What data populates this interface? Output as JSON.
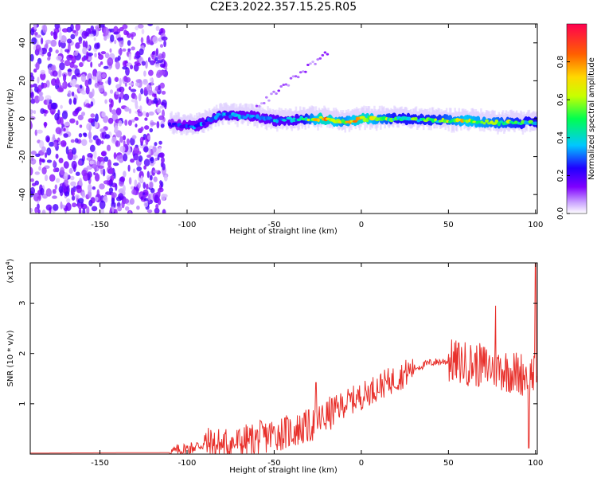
{
  "page_title": "C2E3.2022.357.15.25.R05",
  "chart_data": [
    {
      "type": "heatmap",
      "title": "C2E3.2022.357.15.25.R05",
      "xlabel": "Height of straight line (km)",
      "ylabel": "Frequency (Hz)",
      "xlim": [
        -190,
        101
      ],
      "ylim": [
        -50,
        50
      ],
      "x_ticks": [
        -150,
        -100,
        -50,
        0,
        50,
        100
      ],
      "x_tick_labels": [
        "-150",
        "-100",
        "-50",
        "0",
        "50",
        "100"
      ],
      "y_ticks": [
        -40,
        -20,
        0,
        20,
        40
      ],
      "y_tick_labels": [
        "-40",
        "-20",
        "0",
        "20",
        "40"
      ],
      "colorbar": {
        "label": "Normalized spectral amplitude",
        "range": [
          0,
          1
        ],
        "ticks": [
          0.0,
          0.2,
          0.4,
          0.6,
          0.8
        ],
        "tick_labels": [
          "0.0",
          "0.2",
          "0.4",
          "0.6",
          "0.8"
        ],
        "colors": [
          "#ffffff",
          "#9a00ff",
          "#2000ff",
          "#00c8ff",
          "#00ff40",
          "#ffff00",
          "#ff8000",
          "#ff0040"
        ]
      },
      "description_ridge": [
        {
          "x": -110,
          "y": -3,
          "amp": 0.25
        },
        {
          "x": -95,
          "y": -4,
          "amp": 0.35
        },
        {
          "x": -80,
          "y": 2,
          "amp": 0.4
        },
        {
          "x": -60,
          "y": 1,
          "amp": 0.35
        },
        {
          "x": -50,
          "y": -1,
          "amp": 0.4
        },
        {
          "x": -35,
          "y": 0,
          "amp": 0.45
        },
        {
          "x": -22,
          "y": 0,
          "amp": 0.95
        },
        {
          "x": -10,
          "y": -2,
          "amp": 0.7
        },
        {
          "x": 0,
          "y": 0,
          "amp": 0.9
        },
        {
          "x": 20,
          "y": 0,
          "amp": 0.55
        },
        {
          "x": 45,
          "y": -1,
          "amp": 0.6
        },
        {
          "x": 60,
          "y": -1,
          "amp": 0.8
        },
        {
          "x": 75,
          "y": -2,
          "amp": 0.7
        },
        {
          "x": 95,
          "y": -2,
          "amp": 0.55
        }
      ],
      "noise_region_x": [
        -190,
        -112
      ],
      "noise_amp": 0.18
    },
    {
      "type": "line",
      "xlabel": "Height of straight line (km)",
      "ylabel": "SNR (10 * v/v)",
      "y_multiplier": "(x10",
      "y_multiplier_exp": "4",
      "y_multiplier_close": ")",
      "xlim": [
        -190,
        101
      ],
      "ylim": [
        0,
        3.8
      ],
      "x_ticks": [
        -150,
        -100,
        -50,
        0,
        50,
        100
      ],
      "x_tick_labels": [
        "-150",
        "-100",
        "-50",
        "0",
        "50",
        "100"
      ],
      "y_ticks": [
        1,
        2,
        3
      ],
      "y_tick_labels": [
        "1",
        "2",
        "3"
      ],
      "series": [
        {
          "color": "#e8302b",
          "baseline": [
            [
              -190,
              0.02
            ],
            [
              -110,
              0.03
            ],
            [
              -100,
              0.1
            ],
            [
              -90,
              0.2
            ],
            [
              -80,
              0.18
            ],
            [
              -70,
              0.22
            ],
            [
              -60,
              0.3
            ],
            [
              -50,
              0.4
            ],
            [
              -40,
              0.45
            ],
            [
              -30,
              0.55
            ],
            [
              -20,
              0.75
            ],
            [
              -10,
              1.0
            ],
            [
              0,
              1.15
            ],
            [
              10,
              1.35
            ],
            [
              20,
              1.5
            ],
            [
              30,
              1.7
            ],
            [
              40,
              1.82
            ],
            [
              50,
              1.85
            ],
            [
              60,
              1.8
            ],
            [
              70,
              1.75
            ],
            [
              80,
              1.7
            ],
            [
              90,
              1.6
            ],
            [
              100,
              1.6
            ]
          ],
          "peaks": [
            [
              -26,
              1.42
            ],
            [
              77,
              2.95
            ],
            [
              96,
              0.12
            ],
            [
              100,
              3.8
            ]
          ]
        }
      ]
    }
  ]
}
